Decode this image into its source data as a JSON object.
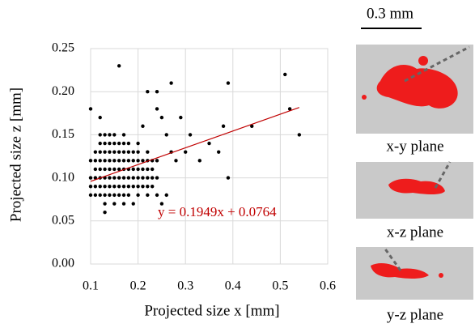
{
  "chart_data": {
    "type": "scatter",
    "x_label": "Projected size x [mm]",
    "y_label": "Projected size z [mm]",
    "xlim": [
      0.1,
      0.6
    ],
    "xticks": [
      0.1,
      0.2,
      0.3,
      0.4,
      0.5,
      0.6
    ],
    "ylim": [
      0,
      0.25
    ],
    "yticks": [
      {
        "value": 0,
        "label": "0.00"
      },
      0.05,
      {
        "value": 0.1,
        "label": "0.10"
      },
      0.15,
      {
        "value": 0.2,
        "label": "0.20"
      },
      0.25
    ],
    "grid": true,
    "color": "#000000",
    "x": [
      0.1,
      0.1,
      0.1,
      0.1,
      0.11,
      0.11,
      0.11,
      0.11,
      0.11,
      0.11,
      0.12,
      0.12,
      0.12,
      0.12,
      0.12,
      0.12,
      0.12,
      0.12,
      0.13,
      0.13,
      0.13,
      0.13,
      0.13,
      0.13,
      0.13,
      0.13,
      0.13,
      0.14,
      0.14,
      0.14,
      0.14,
      0.14,
      0.14,
      0.14,
      0.14,
      0.15,
      0.15,
      0.15,
      0.15,
      0.15,
      0.15,
      0.15,
      0.15,
      0.15,
      0.16,
      0.16,
      0.16,
      0.16,
      0.16,
      0.16,
      0.16,
      0.17,
      0.17,
      0.17,
      0.17,
      0.17,
      0.17,
      0.17,
      0.17,
      0.17,
      0.18,
      0.18,
      0.18,
      0.18,
      0.18,
      0.18,
      0.18,
      0.19,
      0.19,
      0.19,
      0.19,
      0.19,
      0.19,
      0.2,
      0.2,
      0.2,
      0.2,
      0.2,
      0.2,
      0.2,
      0.21,
      0.21,
      0.21,
      0.21,
      0.22,
      0.22,
      0.22,
      0.22,
      0.22,
      0.22,
      0.23,
      0.23,
      0.23,
      0.23,
      0.24,
      0.24,
      0.24,
      0.16,
      0.1,
      0.22,
      0.24,
      0.27,
      0.39,
      0.51,
      0.52,
      0.54,
      0.44,
      0.38,
      0.39,
      0.35,
      0.37,
      0.33,
      0.31,
      0.3,
      0.29,
      0.25,
      0.26,
      0.27,
      0.28,
      0.13,
      0.25,
      0.26,
      0.21,
      0.24,
      0.12
    ],
    "y": [
      0.08,
      0.09,
      0.1,
      0.12,
      0.08,
      0.09,
      0.1,
      0.11,
      0.12,
      0.13,
      0.08,
      0.09,
      0.1,
      0.11,
      0.12,
      0.13,
      0.14,
      0.15,
      0.07,
      0.08,
      0.09,
      0.1,
      0.11,
      0.12,
      0.13,
      0.14,
      0.15,
      0.08,
      0.09,
      0.1,
      0.11,
      0.12,
      0.13,
      0.14,
      0.15,
      0.07,
      0.08,
      0.09,
      0.1,
      0.11,
      0.12,
      0.13,
      0.14,
      0.15,
      0.08,
      0.09,
      0.1,
      0.11,
      0.12,
      0.13,
      0.14,
      0.07,
      0.08,
      0.09,
      0.1,
      0.11,
      0.12,
      0.13,
      0.14,
      0.15,
      0.08,
      0.09,
      0.1,
      0.11,
      0.12,
      0.13,
      0.14,
      0.07,
      0.09,
      0.1,
      0.11,
      0.12,
      0.13,
      0.08,
      0.09,
      0.1,
      0.11,
      0.12,
      0.13,
      0.14,
      0.09,
      0.1,
      0.11,
      0.12,
      0.08,
      0.09,
      0.1,
      0.11,
      0.12,
      0.13,
      0.09,
      0.1,
      0.11,
      0.12,
      0.08,
      0.1,
      0.12,
      0.23,
      0.18,
      0.2,
      0.2,
      0.21,
      0.21,
      0.22,
      0.18,
      0.15,
      0.16,
      0.16,
      0.1,
      0.14,
      0.13,
      0.12,
      0.15,
      0.13,
      0.17,
      0.17,
      0.15,
      0.13,
      0.12,
      0.06,
      0.07,
      0.08,
      0.16,
      0.18,
      0.17
    ],
    "trendline": {
      "slope": 0.1949,
      "intercept": 0.0764,
      "label": "y = 0.1949x + 0.0764",
      "x_range": [
        0.1,
        0.54
      ],
      "color": "#c00000"
    }
  },
  "panels": {
    "scale_bar": "0.3 mm",
    "images": [
      {
        "label": "x-y plane"
      },
      {
        "label": "x-z plane"
      },
      {
        "label": "y-z plane"
      }
    ]
  }
}
